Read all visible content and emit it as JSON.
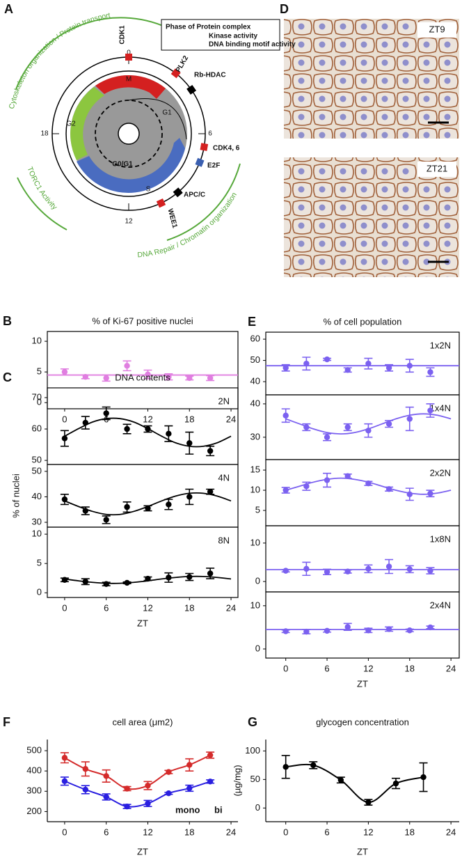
{
  "chart_data": [
    {
      "type": "scatter",
      "panel": "B",
      "title": "% of Ki-67 positive nuclei",
      "x": [
        0,
        3,
        6,
        9,
        12,
        15,
        18,
        21
      ],
      "values": [
        5.0,
        4.2,
        4.0,
        6.0,
        4.6,
        4.2,
        4.0,
        4.0
      ],
      "errors": [
        0.5,
        0.3,
        0.5,
        0.8,
        0.7,
        0.5,
        0.3,
        0.4
      ],
      "fit": {
        "x": [
          -2.5,
          25
        ],
        "values": [
          4.5,
          4.5
        ]
      },
      "color": "#e07ee0",
      "box": true,
      "xlim": [
        -2.5,
        25
      ],
      "xticks": [
        0,
        6,
        12,
        18,
        24
      ],
      "ylim": [
        -1,
        11.6
      ],
      "yticks": [
        0,
        5,
        10
      ]
    },
    {
      "type": "scatter",
      "panel": "C",
      "title": "DNA contents",
      "label": "2N",
      "x": [
        0,
        3,
        6,
        9,
        12,
        15,
        18,
        21
      ],
      "values": [
        57,
        62,
        65,
        60,
        60,
        58.5,
        55.5,
        53
      ],
      "errors": [
        2.5,
        2,
        2,
        1.5,
        1,
        2.5,
        3.5,
        1.5
      ],
      "fit": {
        "x": [
          0,
          2,
          4,
          6,
          8,
          10,
          12,
          14,
          16,
          18,
          20,
          22,
          24
        ],
        "values": [
          57.7,
          60.1,
          62.2,
          63.3,
          63.3,
          62.2,
          60.1,
          57.7,
          55.6,
          54.5,
          54.5,
          55.6,
          57.7
        ]
      },
      "color": "#000000",
      "box": true,
      "xlim": [
        -2.5,
        25
      ],
      "ylim": [
        48.7,
        73.1
      ],
      "yticks": [
        50,
        60,
        70
      ]
    },
    {
      "type": "scatter",
      "label": "4N",
      "ylabel": "% of nuclei",
      "x": [
        0,
        3,
        6,
        9,
        12,
        15,
        18,
        21
      ],
      "values": [
        39,
        34.5,
        31,
        36,
        35.5,
        37,
        40,
        42
      ],
      "errors": [
        2,
        1.5,
        1.5,
        2,
        1,
        2,
        3,
        1
      ],
      "fit": {
        "x": [
          0,
          2,
          4,
          6,
          8,
          10,
          12,
          14,
          16,
          18,
          20,
          22,
          24
        ],
        "values": [
          38.4,
          36.2,
          34.3,
          33.1,
          33.1,
          34.3,
          36.2,
          38.4,
          40.3,
          41.4,
          41.4,
          40.3,
          38.4
        ]
      },
      "color": "#000000",
      "box": true,
      "xlim": [
        -2.5,
        25
      ],
      "ylim": [
        28.1,
        52.7
      ],
      "yticks": [
        30,
        40,
        50
      ]
    },
    {
      "type": "scatter",
      "label": "8N",
      "xlabel": "ZT",
      "x": [
        0,
        3,
        6,
        9,
        12,
        15,
        18,
        21
      ],
      "values": [
        2.2,
        1.9,
        1.5,
        1.7,
        2.4,
        2.6,
        2.7,
        3.3
      ],
      "errors": [
        0.3,
        0.5,
        0.3,
        0.15,
        0.3,
        0.8,
        0.6,
        0.9
      ],
      "fit": {
        "x": [
          0,
          2,
          4,
          6,
          8,
          10,
          12,
          14,
          16,
          18,
          20,
          22,
          24
        ],
        "values": [
          2.36,
          2.04,
          1.78,
          1.62,
          1.62,
          1.78,
          2.04,
          2.36,
          2.62,
          2.78,
          2.78,
          2.62,
          2.36
        ]
      },
      "color": "#000000",
      "box": true,
      "xlim": [
        -2.5,
        25
      ],
      "xticks": [
        0,
        6,
        12,
        18,
        24
      ],
      "ylim": [
        -0.8,
        11.2
      ],
      "yticks": [
        0,
        5,
        10
      ]
    },
    {
      "type": "scatter",
      "panel": "E",
      "title": "% of cell population",
      "label": "1x2N",
      "x": [
        0,
        3,
        6,
        9,
        12,
        15,
        18,
        21
      ],
      "values": [
        46.5,
        48.5,
        50.5,
        45.5,
        48.5,
        46.5,
        47.5,
        44.5
      ],
      "errors": [
        1.5,
        3,
        0.5,
        1,
        2.5,
        1.5,
        3,
        2
      ],
      "fit": {
        "x": [
          -2.9,
          25.2
        ],
        "values": [
          47.5,
          47.5
        ]
      },
      "color": "#7b61f0",
      "box": true,
      "xlim": [
        -2.9,
        25.2
      ],
      "ylim": [
        33.8,
        63.3
      ],
      "yticks": [
        40,
        50,
        60
      ]
    },
    {
      "type": "scatter",
      "label": "1x4N",
      "x": [
        0,
        3,
        6,
        9,
        12,
        15,
        18,
        21
      ],
      "values": [
        36.5,
        33,
        30,
        33,
        32,
        34,
        35.5,
        38
      ],
      "errors": [
        2,
        1,
        1,
        1,
        2,
        1,
        3.5,
        2
      ],
      "fit": {
        "x": [
          0,
          2,
          4,
          6,
          8,
          10,
          12,
          14,
          16,
          18,
          20,
          22,
          24
        ],
        "values": [
          35.5,
          34,
          32.5,
          31.4,
          31,
          31.4,
          32.5,
          34,
          35.5,
          36.6,
          37,
          36.6,
          35.5
        ]
      },
      "color": "#7b61f0",
      "box": true,
      "xlim": [
        -2.9,
        25.2
      ],
      "ylim": [
        23.3,
        42.7
      ],
      "yticks": [
        30,
        40
      ]
    },
    {
      "type": "scatter",
      "label": "2x2N",
      "x": [
        0,
        3,
        6,
        9,
        12,
        15,
        18,
        21
      ],
      "values": [
        10,
        11,
        12.5,
        13.5,
        11.7,
        10.3,
        9,
        9.2
      ],
      "errors": [
        0.7,
        1,
        1.7,
        0.5,
        0.5,
        0.5,
        1.5,
        0.8
      ],
      "fit": {
        "x": [
          0,
          2,
          4,
          6,
          8,
          10,
          12,
          14,
          16,
          18,
          20,
          22,
          24
        ],
        "values": [
          10,
          11,
          12,
          12.7,
          13,
          12.7,
          12,
          11,
          10,
          9.3,
          9,
          9.3,
          10
        ]
      },
      "color": "#7b61f0",
      "box": true,
      "xlim": [
        -2.9,
        25.2
      ],
      "ylim": [
        1.2,
        17.6
      ],
      "yticks": [
        5,
        10,
        15
      ]
    },
    {
      "type": "scatter",
      "label": "1x8N",
      "x": [
        0,
        3,
        6,
        9,
        12,
        15,
        18,
        21
      ],
      "values": [
        2.8,
        3.3,
        2.5,
        2.6,
        3.3,
        3.9,
        3.2,
        2.8
      ],
      "errors": [
        0.3,
        1.7,
        0.7,
        0.4,
        1,
        1.8,
        0.9,
        0.8
      ],
      "fit": {
        "x": [
          -2.9,
          25.2
        ],
        "values": [
          3.1,
          3.1
        ]
      },
      "color": "#7b61f0",
      "box": true,
      "xlim": [
        -2.9,
        25.2
      ],
      "ylim": [
        -2.7,
        14.5
      ],
      "yticks": [
        0,
        10
      ]
    },
    {
      "type": "scatter",
      "label": "2x4N",
      "xlabel": "ZT",
      "x": [
        0,
        3,
        6,
        9,
        12,
        15,
        18,
        21
      ],
      "values": [
        4.1,
        4.0,
        4.2,
        5.1,
        4.3,
        4.6,
        4.3,
        5.0
      ],
      "errors": [
        0.3,
        0.5,
        0.3,
        0.8,
        0.5,
        0.5,
        0.3,
        0.3
      ],
      "fit": {
        "x": [
          -2.9,
          25.2
        ],
        "values": [
          4.5,
          4.5
        ]
      },
      "color": "#7b61f0",
      "box": true,
      "xlim": [
        -2.9,
        25.2
      ],
      "xticks": [
        0,
        6,
        12,
        18,
        24
      ],
      "ylim": [
        -2.1,
        13.2
      ],
      "yticks": [
        0,
        10
      ]
    },
    {
      "type": "line",
      "panel": "F",
      "title": "cell area (μm2)",
      "xlabel": "ZT",
      "x": [
        0,
        3,
        6,
        9,
        12,
        15,
        18,
        21
      ],
      "series": [
        {
          "name": "mono",
          "color": "#2a1fe0",
          "values": [
            350,
            308,
            272,
            225,
            240,
            290,
            315,
            348
          ],
          "errors": [
            20,
            20,
            15,
            10,
            15,
            5,
            15,
            8
          ]
        },
        {
          "name": "bi",
          "color": "#d42a2a",
          "values": [
            465,
            410,
            375,
            313,
            328,
            395,
            430,
            478
          ],
          "errors": [
            25,
            35,
            30,
            10,
            20,
            8,
            30,
            15
          ]
        }
      ],
      "legend": "lower right",
      "box": false,
      "xlim": [
        -2.5,
        25
      ],
      "xticks": [
        0,
        6,
        12,
        18,
        24
      ],
      "ylim": [
        150,
        555
      ],
      "yticks": [
        200,
        300,
        400,
        500
      ]
    },
    {
      "type": "line",
      "panel": "G",
      "title": "glycogen concentration",
      "xlabel": "ZT",
      "ylabel": "(µg/mg)",
      "x": [
        0,
        4,
        8,
        12,
        16,
        20
      ],
      "series": [
        {
          "color": "#000000",
          "values": [
            72,
            75,
            49,
            10,
            43,
            54
          ],
          "errors": [
            20,
            6,
            5,
            5,
            9,
            25
          ]
        }
      ],
      "box": false,
      "xlim": [
        -2.9,
        25.2
      ],
      "xticks": [
        0,
        6,
        12,
        18,
        24
      ],
      "ylim": [
        -24,
        120
      ],
      "yticks": [
        0,
        50,
        100
      ]
    }
  ],
  "diagram": {
    "panel": "A",
    "legend": {
      "title": "Phase of Protein complex",
      "items": [
        {
          "text": "Kinase activity",
          "color": "#d42020"
        },
        {
          "text": "DNA binding motif activity",
          "color": "#3a5fb0"
        }
      ]
    },
    "clock": [
      "0",
      "6",
      "12",
      "18"
    ],
    "phases": [
      "M",
      "G1",
      "G2",
      "S",
      "G0/G1"
    ],
    "proteins": [
      {
        "label": "CDK1",
        "color": "#d42020"
      },
      {
        "label": "PLK2",
        "color": "#d42020"
      },
      {
        "label": "Rb-HDAC",
        "color": "#000000"
      },
      {
        "label": "CDK4, 6",
        "color": "#d42020"
      },
      {
        "label": "E2F",
        "color": "#3a5fb0"
      },
      {
        "label": "APC/C",
        "color": "#000000"
      },
      {
        "label": "WEE1",
        "color": "#d42020"
      }
    ],
    "processes": [
      "Cytoskeleton organization / Protein transport",
      "TORC1 Activity",
      "DNA Repair / Chromatin organization"
    ]
  },
  "images": {
    "panel": "D",
    "labels": [
      "ZT9",
      "ZT21"
    ]
  }
}
